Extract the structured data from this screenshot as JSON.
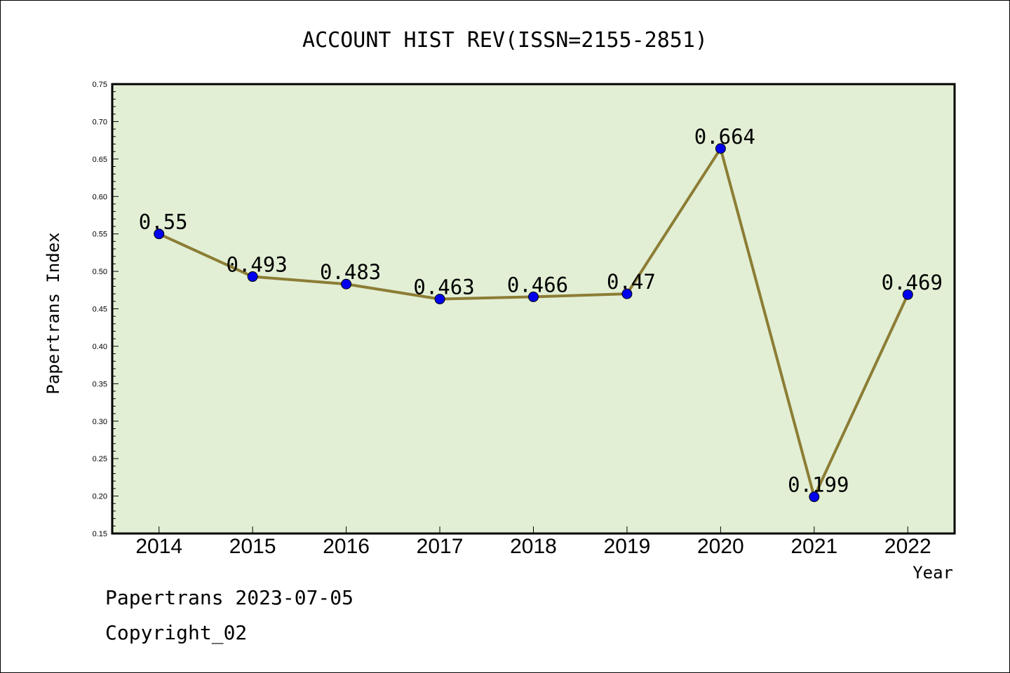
{
  "chart_data": {
    "type": "line",
    "title": "ACCOUNT HIST REV(ISSN=2155-2851)",
    "xlabel": "Year",
    "ylabel": "Papertrans Index",
    "categories": [
      "2014",
      "2015",
      "2016",
      "2017",
      "2018",
      "2019",
      "2020",
      "2021",
      "2022"
    ],
    "values": [
      0.55,
      0.493,
      0.483,
      0.463,
      0.466,
      0.47,
      0.664,
      0.199,
      0.469
    ],
    "data_labels": [
      "0.55",
      "0.493",
      "0.483",
      "0.463",
      "0.466",
      "0.47",
      "0.664",
      "0.199",
      "0.469"
    ],
    "ylim": [
      0.15,
      0.75
    ],
    "yticks": [
      "0.15",
      "0.20",
      "0.25",
      "0.30",
      "0.35",
      "0.40",
      "0.45",
      "0.50",
      "0.55",
      "0.60",
      "0.65",
      "0.70",
      "0.75"
    ],
    "grid": false,
    "colors": {
      "plot_background": "#e2efd5",
      "line": "#8c7d35",
      "marker": "#0000ee"
    }
  },
  "footer": {
    "source": "Papertrans 2023-07-05",
    "copyright": "Copyright_02"
  }
}
